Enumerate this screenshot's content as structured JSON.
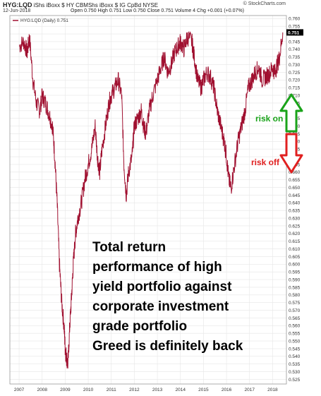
{
  "header": {
    "symbol": "HYG:LQD",
    "description": "iShs iBoxx $ HY CBMShs iBoxx $ IG CpBd NYSE",
    "date": "12-Jun-2018",
    "quote": "Open 0.750  High 0.751  Low 0.750  Close 0.751  Volume 4  Chg +0.001 (+0.07%)",
    "brand": "© StockCharts.com"
  },
  "chart_data": {
    "type": "line",
    "legend": "HYG:LQD (Daily) 0.751",
    "last_value_label": "0.751",
    "x_ticks": [
      "2007",
      "2008",
      "2009",
      "2010",
      "2011",
      "2012",
      "2013",
      "2014",
      "2015",
      "2016",
      "2017",
      "2018"
    ],
    "y_ticks": [
      "0.760",
      "0.755",
      "0.750",
      "0.745",
      "0.740",
      "0.735",
      "0.730",
      "0.725",
      "0.720",
      "0.715",
      "0.710",
      "0.705",
      "0.700",
      "0.695",
      "0.690",
      "0.685",
      "0.680",
      "0.675",
      "0.670",
      "0.665",
      "0.660",
      "0.655",
      "0.650",
      "0.645",
      "0.640",
      "0.635",
      "0.630",
      "0.625",
      "0.620",
      "0.615",
      "0.610",
      "0.605",
      "0.600",
      "0.595",
      "0.590",
      "0.585",
      "0.580",
      "0.575",
      "0.570",
      "0.565",
      "0.560",
      "0.555",
      "0.550",
      "0.545",
      "0.540",
      "0.535",
      "0.530",
      "0.525"
    ],
    "ylim": [
      0.522,
      0.762
    ],
    "xlim": [
      2006.6,
      2018.6
    ],
    "series": [
      {
        "color": "#a01030",
        "x": [
          2007.0,
          2007.2,
          2007.35,
          2007.45,
          2007.6,
          2007.75,
          2007.9,
          2008.0,
          2008.15,
          2008.3,
          2008.45,
          2008.55,
          2008.65,
          2008.75,
          2008.85,
          2008.95,
          2009.0,
          2009.05,
          2009.12,
          2009.2,
          2009.28,
          2009.35,
          2009.45,
          2009.55,
          2009.7,
          2009.85,
          2010.0,
          2010.15,
          2010.3,
          2010.4,
          2010.5,
          2010.6,
          2010.75,
          2010.9,
          2011.0,
          2011.15,
          2011.3,
          2011.45,
          2011.55,
          2011.65,
          2011.75,
          2011.9,
          2012.0,
          2012.15,
          2012.3,
          2012.4,
          2012.5,
          2012.65,
          2012.8,
          2013.0,
          2013.15,
          2013.3,
          2013.45,
          2013.6,
          2013.75,
          2013.9,
          2014.0,
          2014.15,
          2014.3,
          2014.5,
          2014.6,
          2014.75,
          2014.9,
          2015.0,
          2015.15,
          2015.3,
          2015.45,
          2015.6,
          2015.75,
          2015.9,
          2016.0,
          2016.1,
          2016.2,
          2016.35,
          2016.5,
          2016.65,
          2016.8,
          2016.95,
          2017.1,
          2017.25,
          2017.4,
          2017.55,
          2017.7,
          2017.85,
          2018.0,
          2018.1,
          2018.2,
          2018.3,
          2018.44
        ],
        "values": [
          0.742,
          0.745,
          0.738,
          0.748,
          0.72,
          0.705,
          0.7,
          0.71,
          0.705,
          0.698,
          0.69,
          0.67,
          0.64,
          0.6,
          0.575,
          0.56,
          0.545,
          0.54,
          0.535,
          0.56,
          0.58,
          0.6,
          0.62,
          0.63,
          0.64,
          0.655,
          0.665,
          0.675,
          0.69,
          0.67,
          0.66,
          0.675,
          0.69,
          0.705,
          0.71,
          0.715,
          0.72,
          0.71,
          0.665,
          0.645,
          0.66,
          0.67,
          0.69,
          0.695,
          0.7,
          0.69,
          0.685,
          0.7,
          0.71,
          0.72,
          0.728,
          0.735,
          0.725,
          0.73,
          0.738,
          0.742,
          0.745,
          0.74,
          0.748,
          0.745,
          0.735,
          0.72,
          0.715,
          0.72,
          0.725,
          0.722,
          0.715,
          0.7,
          0.69,
          0.68,
          0.67,
          0.655,
          0.65,
          0.665,
          0.68,
          0.69,
          0.7,
          0.715,
          0.72,
          0.725,
          0.728,
          0.72,
          0.722,
          0.724,
          0.728,
          0.725,
          0.73,
          0.735,
          0.751
        ]
      }
    ],
    "annotations": {
      "main": [
        "Total return",
        "performance of high",
        "yield portfolio against",
        "corporate investment",
        "grade portfolio",
        "Greed is definitely back"
      ],
      "risk_on": "risk on",
      "risk_off": "risk off"
    },
    "colors": {
      "up_arrow": "#1aa31a",
      "down_arrow": "#e02020",
      "last_label_bg": "#000000"
    }
  }
}
